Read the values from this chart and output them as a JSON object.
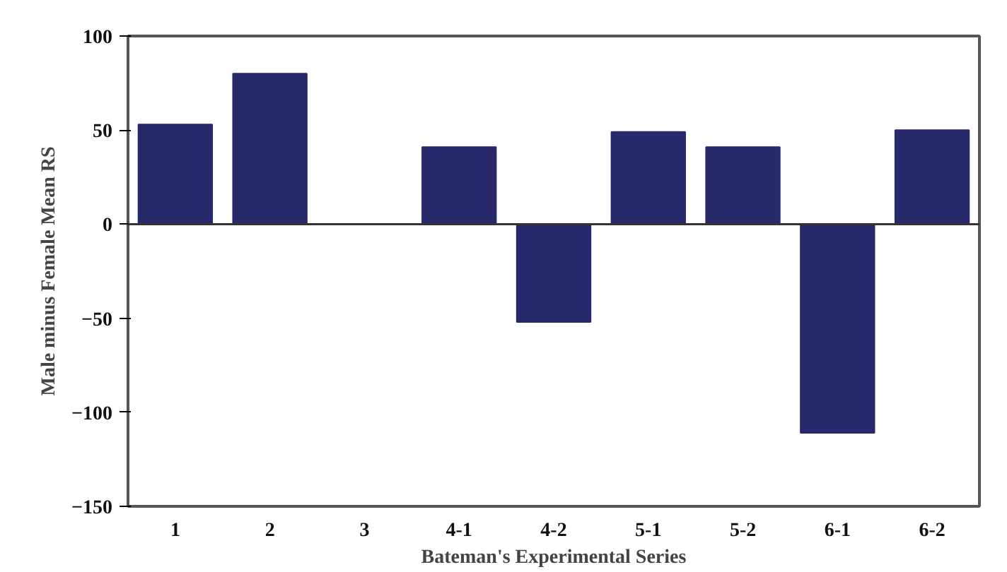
{
  "chart_data": {
    "type": "bar",
    "xlabel": "Bateman's Experimental Series",
    "ylabel": "Male minus Female Mean RS",
    "categories": [
      "1",
      "2",
      "3",
      "4-1",
      "4-2",
      "5-1",
      "5-2",
      "6-1",
      "6-2"
    ],
    "values": [
      53,
      80,
      0,
      41,
      -52,
      49,
      41,
      -111,
      50
    ],
    "color": "#27296b",
    "ylim": [
      -150,
      100
    ],
    "yticks": [
      100,
      50,
      0,
      -50,
      -100,
      -150
    ],
    "ref_lines": [
      {
        "axis": "y",
        "value": 0,
        "color": "#333333"
      }
    ]
  }
}
